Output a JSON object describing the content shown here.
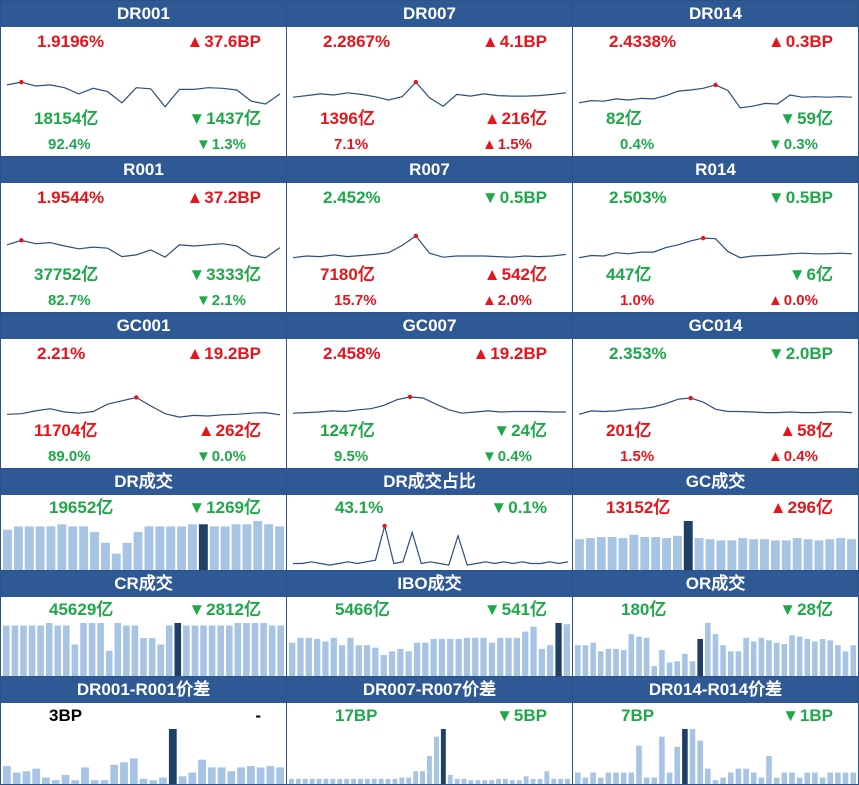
{
  "colors": {
    "header_bg": "#2f5994",
    "up": "#e8141b",
    "down": "#1fa84a",
    "line": "#2c4f7c",
    "bar": "#a7c4e4",
    "bar_highlight": "#1f3f66"
  },
  "rate_panels": [
    {
      "title": "DR001",
      "rate": "1.9196%",
      "rate_color": "red",
      "rate_dir": "up",
      "rate_change": "37.6BP",
      "volume": "18154亿",
      "vol_color": "green",
      "vol_dir": "down",
      "vol_change": "1437亿",
      "ratio": "92.4%",
      "ratio_color": "green",
      "ratio_dir": "down",
      "ratio_change": "1.3%",
      "series": [
        57,
        52,
        59,
        57,
        62,
        73,
        63,
        69,
        89,
        62,
        64,
        96,
        65,
        65,
        62,
        63,
        66,
        86,
        91,
        73
      ]
    },
    {
      "title": "DR007",
      "rate": "2.2867%",
      "rate_color": "red",
      "rate_dir": "up",
      "rate_change": "4.1BP",
      "volume": "1396亿",
      "vol_color": "red",
      "vol_dir": "up",
      "vol_change": "216亿",
      "ratio": "7.1%",
      "ratio_color": "red",
      "ratio_dir": "up",
      "ratio_change": "1.5%",
      "series": [
        79,
        76,
        73,
        75,
        71,
        74,
        78,
        84,
        78,
        52,
        80,
        95,
        74,
        77,
        73,
        76,
        77,
        77,
        76,
        74,
        71
      ]
    },
    {
      "title": "DR014",
      "rate": "2.4338%",
      "rate_color": "red",
      "rate_dir": "up",
      "rate_change": "0.3BP",
      "volume": "82亿",
      "vol_color": "green",
      "vol_dir": "down",
      "vol_change": "59亿",
      "ratio": "0.4%",
      "ratio_color": "green",
      "ratio_dir": "down",
      "ratio_change": "0.3%",
      "series": [
        89,
        85,
        86,
        82,
        84,
        81,
        82,
        76,
        68,
        66,
        63,
        57,
        67,
        98,
        95,
        90,
        91,
        75,
        79,
        78,
        79,
        78,
        79
      ]
    },
    {
      "title": "R001",
      "rate": "1.9544%",
      "rate_color": "red",
      "rate_dir": "up",
      "rate_change": "37.2BP",
      "volume": "37752亿",
      "vol_color": "green",
      "vol_dir": "down",
      "vol_change": "3333亿",
      "ratio": "82.7%",
      "ratio_color": "green",
      "ratio_dir": "down",
      "ratio_change": "2.1%",
      "series": [
        64,
        56,
        62,
        60,
        66,
        71,
        68,
        70,
        85,
        82,
        73,
        86,
        64,
        66,
        64,
        62,
        66,
        83,
        87,
        69
      ]
    },
    {
      "title": "R007",
      "rate": "2.452%",
      "rate_color": "green",
      "rate_dir": "down",
      "rate_change": "0.5BP",
      "volume": "7180亿",
      "vol_color": "red",
      "vol_dir": "up",
      "vol_change": "542亿",
      "ratio": "15.7%",
      "ratio_color": "red",
      "ratio_dir": "up",
      "ratio_change": "2.0%",
      "series": [
        87,
        84,
        85,
        82,
        85,
        83,
        81,
        78,
        65,
        48,
        79,
        86,
        84,
        84,
        84,
        85,
        86,
        84,
        85,
        84,
        81
      ]
    },
    {
      "title": "R014",
      "rate": "2.503%",
      "rate_color": "green",
      "rate_dir": "down",
      "rate_change": "0.5BP",
      "volume": "447亿",
      "vol_color": "green",
      "vol_dir": "down",
      "vol_change": "6亿",
      "ratio": "1.0%",
      "ratio_color": "red",
      "ratio_dir": "up",
      "ratio_change": "0.0%",
      "series": [
        87,
        83,
        84,
        78,
        80,
        77,
        77,
        69,
        64,
        57,
        52,
        53,
        76,
        87,
        84,
        83,
        82,
        80,
        79,
        80,
        80,
        79,
        80
      ]
    },
    {
      "title": "GC001",
      "rate": "2.21%",
      "rate_color": "red",
      "rate_dir": "up",
      "rate_change": "19.2BP",
      "volume": "11704亿",
      "vol_color": "red",
      "vol_dir": "up",
      "vol_change": "262亿",
      "ratio": "89.0%",
      "ratio_color": "green",
      "ratio_dir": "down",
      "ratio_change": "0.0%",
      "series": [
        88,
        87,
        82,
        78,
        84,
        86,
        83,
        70,
        64,
        58,
        73,
        87,
        93,
        90,
        91,
        89,
        88,
        86,
        85,
        89
      ]
    },
    {
      "title": "GC007",
      "rate": "2.458%",
      "rate_color": "red",
      "rate_dir": "up",
      "rate_change": "19.2BP",
      "volume": "1247亿",
      "vol_color": "green",
      "vol_dir": "down",
      "vol_change": "24亿",
      "ratio": "9.5%",
      "ratio_color": "green",
      "ratio_dir": "down",
      "ratio_change": "0.4%",
      "series": [
        86,
        85,
        84,
        82,
        83,
        80,
        78,
        72,
        62,
        57,
        59,
        70,
        80,
        86,
        84,
        82,
        84,
        83,
        83,
        83,
        84,
        84
      ]
    },
    {
      "title": "GC014",
      "rate": "2.353%",
      "rate_color": "green",
      "rate_dir": "down",
      "rate_change": "2.0BP",
      "volume": "201亿",
      "vol_color": "red",
      "vol_dir": "up",
      "vol_change": "58亿",
      "ratio": "1.5%",
      "ratio_color": "red",
      "ratio_dir": "up",
      "ratio_change": "0.4%",
      "series": [
        88,
        82,
        83,
        82,
        79,
        78,
        75,
        69,
        61,
        59,
        66,
        79,
        83,
        83,
        84,
        85,
        85,
        84,
        85,
        85,
        84,
        84,
        85
      ]
    }
  ],
  "volume_panels": [
    {
      "title": "DR成交",
      "value": "19652亿",
      "value_color": "green",
      "dir": "down",
      "change": "1269亿",
      "change_color": "green",
      "type": "bar",
      "highlight": 18,
      "series": [
        37,
        40,
        40,
        40,
        40,
        42,
        40,
        40,
        35,
        25,
        15,
        25,
        35,
        40,
        40,
        40,
        40,
        42,
        42,
        40,
        40,
        42,
        42,
        45,
        42,
        40
      ]
    },
    {
      "title": "DR成交占比",
      "value": "43.1%",
      "value_color": "green",
      "dir": "down",
      "change": "0.1%",
      "change_color": "green",
      "type": "line",
      "series": [
        42,
        42,
        43,
        42,
        41,
        42,
        43,
        42,
        43,
        44,
        65,
        42,
        43,
        61,
        42,
        43,
        42,
        41,
        59,
        41,
        42,
        43,
        42,
        43,
        42,
        43,
        42,
        42,
        43,
        42,
        43
      ]
    },
    {
      "title": "GC成交",
      "value": "13152亿",
      "value_color": "red",
      "dir": "up",
      "change": "296亿",
      "change_color": "red",
      "type": "bar",
      "highlight": 10,
      "series": [
        27,
        28,
        29,
        29,
        28,
        31,
        29,
        29,
        28,
        30,
        43,
        28,
        27,
        26,
        26,
        28,
        27,
        27,
        26,
        26,
        28,
        27,
        26,
        27,
        28,
        27
      ]
    },
    {
      "title": "CR成交",
      "value": "45629亿",
      "value_color": "green",
      "dir": "down",
      "change": "2812亿",
      "change_color": "green",
      "type": "bar",
      "highlight": 20,
      "series": [
        40,
        40,
        40,
        40,
        40,
        42,
        40,
        40,
        25,
        42,
        42,
        42,
        20,
        42,
        40,
        40,
        30,
        30,
        25,
        40,
        42,
        40,
        40,
        40,
        40,
        40,
        40,
        42,
        42,
        42,
        42,
        40,
        40
      ]
    },
    {
      "title": "IBO成交",
      "value": "5466亿",
      "value_color": "green",
      "dir": "down",
      "change": "541亿",
      "change_color": "green",
      "type": "bar",
      "highlight": 32,
      "series": [
        27,
        31,
        31,
        30,
        28,
        31,
        25,
        31,
        25,
        25,
        23,
        17,
        20,
        22,
        20,
        27,
        27,
        30,
        30,
        30,
        30,
        31,
        31,
        31,
        27,
        31,
        31,
        31,
        36,
        40,
        22,
        25,
        43,
        42
      ]
    },
    {
      "title": "OR成交",
      "value": "180亿",
      "value_color": "green",
      "dir": "down",
      "change": "28亿",
      "change_color": "green",
      "type": "bar",
      "highlight": 16,
      "series": [
        25,
        25,
        27,
        20,
        22,
        22,
        21,
        34,
        32,
        31,
        8,
        21,
        11,
        12,
        18,
        12,
        30,
        43,
        34,
        25,
        20,
        20,
        31,
        28,
        31,
        29,
        27,
        26,
        33,
        32,
        30,
        28,
        30,
        29,
        25,
        20,
        25
      ]
    },
    {
      "title": "DR001-R001价差",
      "value": "3BP",
      "value_color": "black",
      "dir": "",
      "change": "-",
      "change_color": "black",
      "type": "bar",
      "highlight": 17,
      "series": [
        14,
        9,
        10,
        12,
        5,
        3,
        7,
        3,
        13,
        3,
        3,
        15,
        17,
        20,
        4,
        3,
        5,
        43,
        6,
        9,
        19,
        13,
        13,
        10,
        13,
        14,
        13,
        14,
        13
      ]
    },
    {
      "title": "DR007-R007价差",
      "value": "17BP",
      "value_color": "green",
      "dir": "down",
      "change": "5BP",
      "change_color": "green",
      "type": "bar",
      "highlight": 22,
      "series": [
        4,
        4,
        4,
        4,
        4,
        4,
        4,
        4,
        4,
        4,
        4,
        4,
        4,
        4,
        4,
        4,
        5,
        5,
        10,
        10,
        22,
        37,
        43,
        7,
        4,
        4,
        3,
        3,
        3,
        3,
        4,
        4,
        3,
        3,
        6,
        4,
        4,
        10,
        4,
        4,
        4
      ]
    },
    {
      "title": "DR014-R014价差",
      "value": "7BP",
      "value_color": "green",
      "dir": "down",
      "change": "1BP",
      "change_color": "green",
      "type": "bar",
      "highlight": 14,
      "series": [
        9,
        5,
        9,
        5,
        9,
        9,
        9,
        9,
        30,
        5,
        5,
        37,
        9,
        29,
        43,
        43,
        34,
        12,
        3,
        5,
        9,
        12,
        12,
        9,
        5,
        22,
        5,
        9,
        9,
        5,
        9,
        9,
        5,
        9,
        9,
        9,
        9
      ]
    }
  ]
}
